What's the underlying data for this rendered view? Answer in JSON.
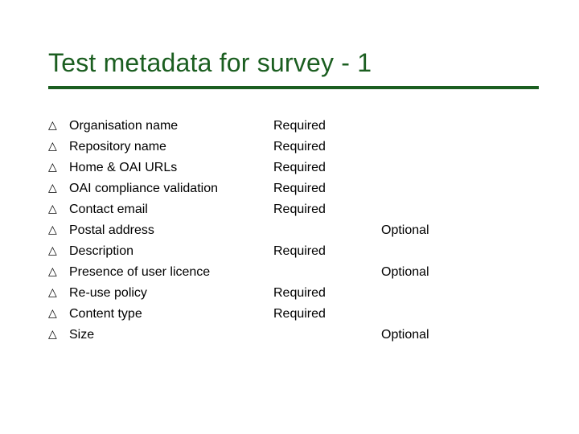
{
  "title": "Test metadata for survey - 1",
  "colors": {
    "title": "#1b5e20",
    "rule": "#1b5e20",
    "text": "#000000",
    "background": "#ffffff"
  },
  "typography": {
    "title_fontsize_pt": 24,
    "body_fontsize_pt": 12,
    "font_family": "Arial"
  },
  "bullet_glyph": "△",
  "columns": [
    "item",
    "required",
    "optional"
  ],
  "rows": [
    {
      "item": "Organisation name",
      "required": "Required",
      "optional": ""
    },
    {
      "item": "Repository name",
      "required": "Required",
      "optional": ""
    },
    {
      "item": "Home & OAI URLs",
      "required": "Required",
      "optional": ""
    },
    {
      "item": "OAI compliance validation",
      "required": "Required",
      "optional": ""
    },
    {
      "item": "Contact email",
      "required": "Required",
      "optional": ""
    },
    {
      "item": "Postal address",
      "required": "",
      "optional": "Optional"
    },
    {
      "item": "Description",
      "required": "Required",
      "optional": ""
    },
    {
      "item": "Presence of user licence",
      "required": "",
      "optional": "Optional"
    },
    {
      "item": "Re-use policy",
      "required": "Required",
      "optional": ""
    },
    {
      "item": "Content type",
      "required": "Required",
      "optional": ""
    },
    {
      "item": "Size",
      "required": "",
      "optional": "Optional"
    }
  ]
}
